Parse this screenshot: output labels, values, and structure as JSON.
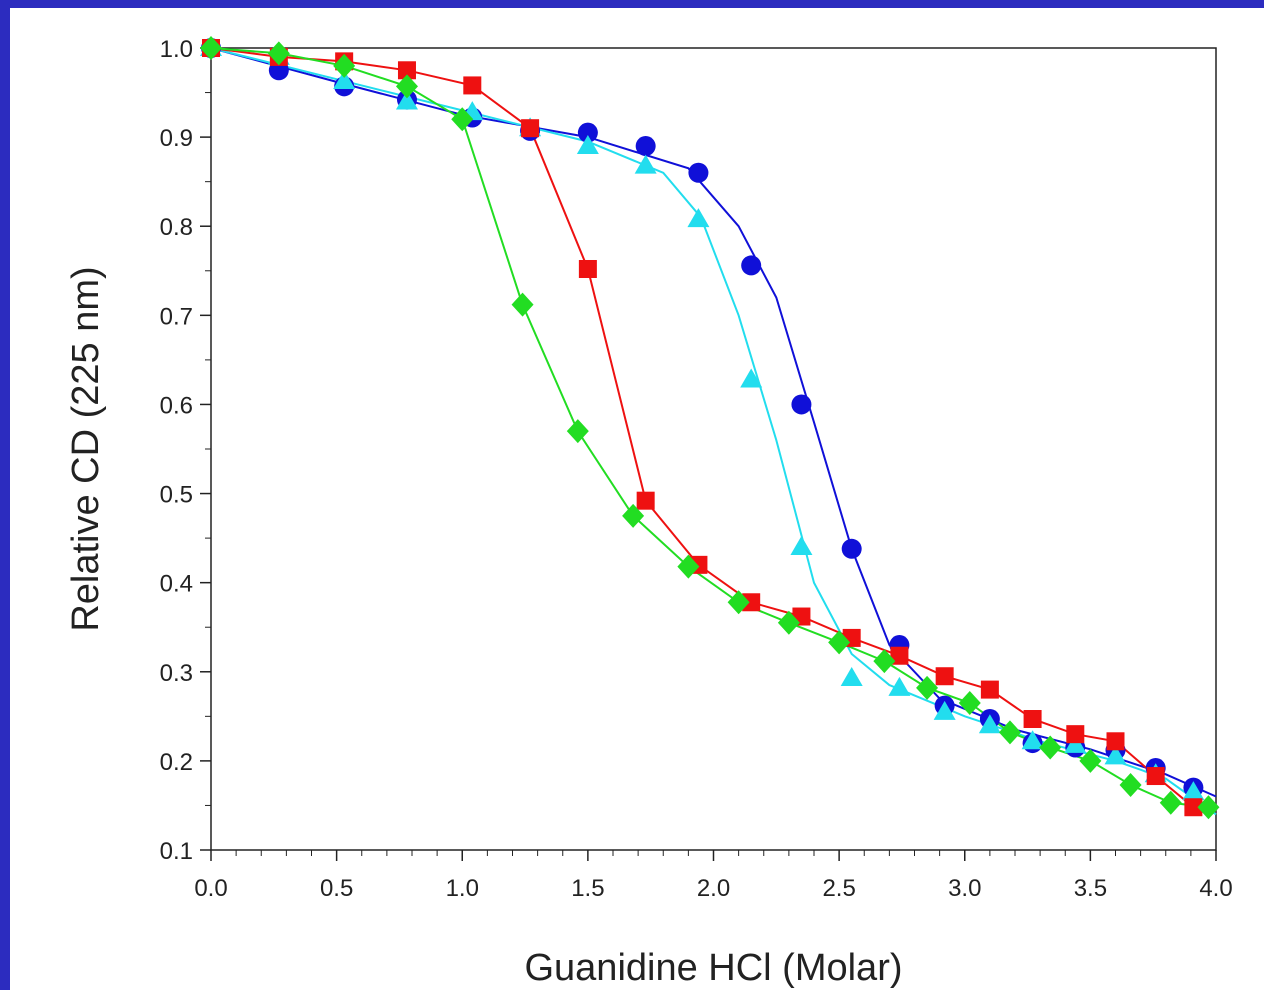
{
  "chart_data": {
    "type": "line",
    "xlabel": "Guanidine HCl (Molar)",
    "ylabel": "Relative CD (225 nm)",
    "xlim": [
      0.0,
      4.0
    ],
    "ylim": [
      0.1,
      1.0
    ],
    "x_ticks": [
      "0.0",
      "0.5",
      "1.0",
      "1.5",
      "2.0",
      "2.5",
      "3.0",
      "3.5",
      "4.0"
    ],
    "y_ticks": [
      "0.1",
      "0.2",
      "0.3",
      "0.4",
      "0.5",
      "0.6",
      "0.7",
      "0.8",
      "0.9",
      "1.0"
    ],
    "grid": false,
    "series": [
      {
        "marker": "circle",
        "color": "#1010d8",
        "points": [
          [
            0.0,
            1.0
          ],
          [
            0.27,
            0.975
          ],
          [
            0.53,
            0.957
          ],
          [
            0.78,
            0.942
          ],
          [
            1.04,
            0.922
          ],
          [
            1.27,
            0.907
          ],
          [
            1.5,
            0.905
          ],
          [
            1.73,
            0.89
          ],
          [
            1.94,
            0.86
          ],
          [
            2.15,
            0.756
          ],
          [
            2.35,
            0.6
          ],
          [
            2.55,
            0.438
          ],
          [
            2.74,
            0.33
          ],
          [
            2.92,
            0.262
          ],
          [
            3.1,
            0.247
          ],
          [
            3.27,
            0.22
          ],
          [
            3.44,
            0.215
          ],
          [
            3.6,
            0.212
          ],
          [
            3.76,
            0.192
          ],
          [
            3.91,
            0.17
          ]
        ],
        "line": [
          [
            0.0,
            1.0
          ],
          [
            0.5,
            0.962
          ],
          [
            1.0,
            0.925
          ],
          [
            1.5,
            0.9
          ],
          [
            1.9,
            0.865
          ],
          [
            2.1,
            0.8
          ],
          [
            2.25,
            0.72
          ],
          [
            2.4,
            0.58
          ],
          [
            2.55,
            0.438
          ],
          [
            2.7,
            0.33
          ],
          [
            2.9,
            0.27
          ],
          [
            3.2,
            0.235
          ],
          [
            3.5,
            0.213
          ],
          [
            3.8,
            0.185
          ],
          [
            4.0,
            0.16
          ]
        ]
      },
      {
        "marker": "triangle",
        "color": "#22ddee",
        "points": [
          [
            0.0,
            1.0
          ],
          [
            0.27,
            0.99
          ],
          [
            0.53,
            0.963
          ],
          [
            0.78,
            0.94
          ],
          [
            1.04,
            0.928
          ],
          [
            1.27,
            0.91
          ],
          [
            1.5,
            0.89
          ],
          [
            1.73,
            0.868
          ],
          [
            1.94,
            0.808
          ],
          [
            2.15,
            0.628
          ],
          [
            2.35,
            0.44
          ],
          [
            2.55,
            0.293
          ],
          [
            2.74,
            0.282
          ],
          [
            2.92,
            0.255
          ],
          [
            3.1,
            0.24
          ],
          [
            3.27,
            0.222
          ],
          [
            3.44,
            0.218
          ],
          [
            3.6,
            0.205
          ],
          [
            3.76,
            0.185
          ],
          [
            3.91,
            0.165
          ]
        ],
        "line": [
          [
            0.0,
            1.0
          ],
          [
            0.5,
            0.965
          ],
          [
            1.0,
            0.93
          ],
          [
            1.5,
            0.895
          ],
          [
            1.8,
            0.86
          ],
          [
            1.95,
            0.81
          ],
          [
            2.1,
            0.7
          ],
          [
            2.25,
            0.56
          ],
          [
            2.4,
            0.4
          ],
          [
            2.55,
            0.32
          ],
          [
            2.7,
            0.285
          ],
          [
            3.0,
            0.25
          ],
          [
            3.3,
            0.222
          ],
          [
            3.6,
            0.2
          ],
          [
            3.8,
            0.18
          ],
          [
            4.0,
            0.14
          ]
        ]
      },
      {
        "marker": "square",
        "color": "#ee1111",
        "points": [
          [
            0.0,
            1.0
          ],
          [
            0.27,
            0.99
          ],
          [
            0.53,
            0.985
          ],
          [
            0.78,
            0.975
          ],
          [
            1.04,
            0.958
          ],
          [
            1.27,
            0.91
          ],
          [
            1.5,
            0.752
          ],
          [
            1.73,
            0.492
          ],
          [
            1.94,
            0.42
          ],
          [
            2.15,
            0.378
          ],
          [
            2.35,
            0.362
          ],
          [
            2.55,
            0.338
          ],
          [
            2.74,
            0.318
          ],
          [
            2.92,
            0.295
          ],
          [
            3.1,
            0.28
          ],
          [
            3.27,
            0.247
          ],
          [
            3.44,
            0.23
          ],
          [
            3.6,
            0.222
          ],
          [
            3.76,
            0.183
          ],
          [
            3.91,
            0.148
          ]
        ]
      },
      {
        "marker": "diamond",
        "color": "#22dd22",
        "points": [
          [
            0.0,
            1.0
          ],
          [
            0.27,
            0.994
          ],
          [
            0.53,
            0.98
          ],
          [
            0.78,
            0.957
          ],
          [
            1.0,
            0.92
          ],
          [
            1.24,
            0.712
          ],
          [
            1.46,
            0.57
          ],
          [
            1.68,
            0.475
          ],
          [
            1.9,
            0.418
          ],
          [
            2.1,
            0.378
          ],
          [
            2.3,
            0.355
          ],
          [
            2.5,
            0.333
          ],
          [
            2.68,
            0.312
          ],
          [
            2.85,
            0.282
          ],
          [
            3.02,
            0.265
          ],
          [
            3.18,
            0.232
          ],
          [
            3.34,
            0.215
          ],
          [
            3.5,
            0.2
          ],
          [
            3.66,
            0.173
          ],
          [
            3.82,
            0.153
          ],
          [
            3.97,
            0.148
          ]
        ]
      }
    ]
  }
}
